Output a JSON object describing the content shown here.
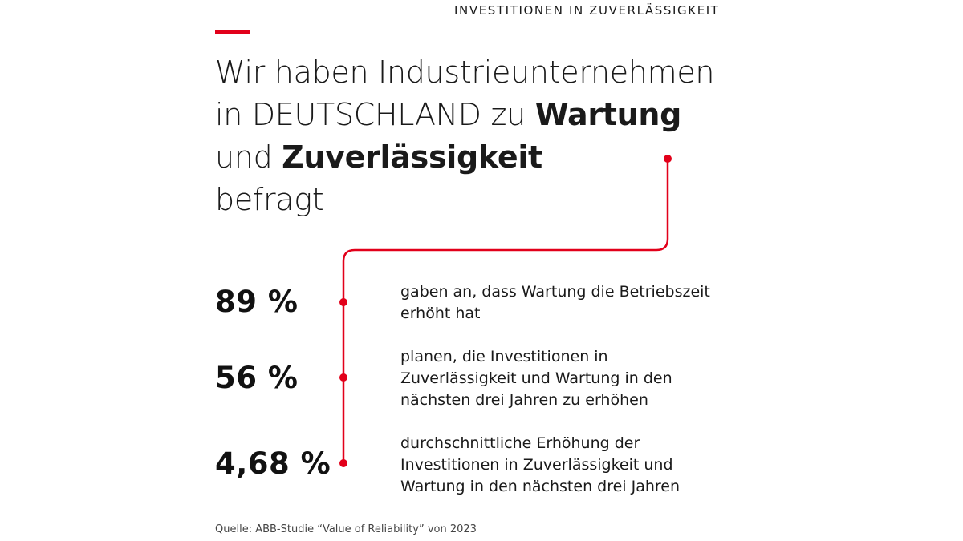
{
  "kicker": "INVESTITIONEN IN ZUVERLÄSSIGKEIT",
  "headline": {
    "line1": "Wir haben Industrieunternehmen",
    "line2_plain": "in DEUTSCHLAND zu ",
    "line2_bold": "Wartung",
    "line3_plain": "und ",
    "line3_bold": "Zuverlässigkeit",
    "line4": "befragt"
  },
  "stats": [
    {
      "value": "89 %",
      "lines": [
        "gaben an, dass Wartung die Betriebszeit",
        "erhöht hat"
      ]
    },
    {
      "value": "56 %",
      "lines": [
        "planen, die Investitionen in",
        "Zuverlässigkeit und Wartung in den",
        "nächsten drei Jahren zu erhöhen"
      ]
    },
    {
      "value": "4,68 %",
      "lines": [
        "durchschnittliche Erhöhung der",
        "Investitionen in Zuverlässigkeit und",
        "Wartung in den nächsten drei Jahren"
      ]
    }
  ],
  "source": "Quelle: ABB-Studie “Value of Reliability” von 2023",
  "colors": {
    "accent": "#e2001a",
    "text": "#1a1a1a"
  }
}
